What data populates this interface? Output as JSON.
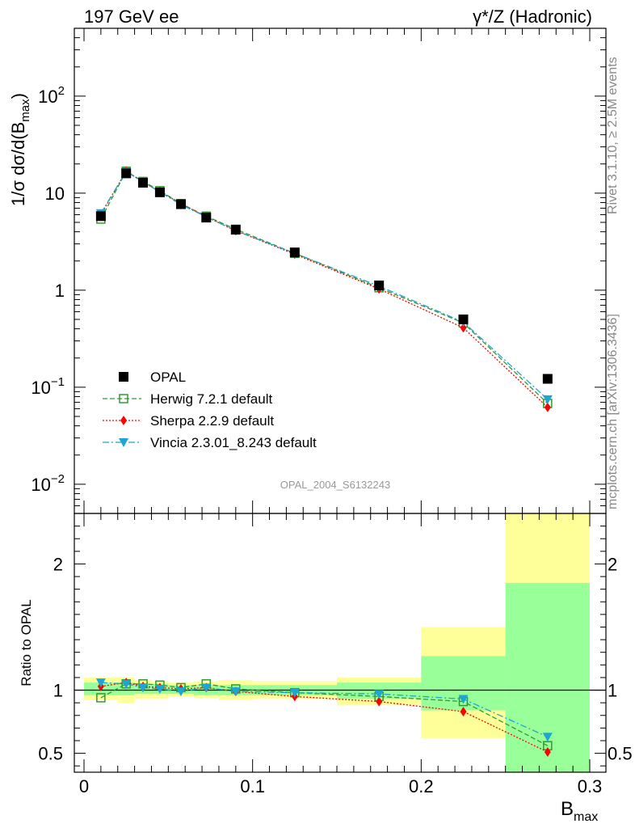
{
  "header": {
    "left": "197 GeV ee",
    "right": "γ*/Z (Hadronic)"
  },
  "side": {
    "rivet": "Rivet 3.1.10, ≥ 2.5M events",
    "mcplots": "mcplots.cern.ch [arXiv:1306.3436]"
  },
  "analysis_tag": "OPAL_2004_S6132243",
  "axes": {
    "main_ylabel": "1/σ dσ/d(B",
    "main_ylabel_sub": "max",
    "ratio_ylabel": "Ratio to OPAL",
    "xlabel": "B",
    "xlabel_sub": "max",
    "main_yticks": [
      {
        "v": 0.01,
        "base": "10",
        "exp": "−2"
      },
      {
        "v": 0.1,
        "base": "10",
        "exp": "−1"
      },
      {
        "v": 1,
        "base": "1",
        "exp": ""
      },
      {
        "v": 10,
        "base": "10",
        "exp": ""
      },
      {
        "v": 100,
        "base": "10",
        "exp": "2"
      }
    ],
    "ratio_yticks": [
      "0.5",
      "1",
      "2"
    ],
    "xticks": [
      "0",
      "0.1",
      "0.2",
      "0.3"
    ]
  },
  "colors": {
    "opal": "#000000",
    "herwig": "#339933",
    "sherpa": "#ff0000",
    "vincia": "#1ea5d2",
    "band_outer": "#ffff99",
    "band_inner": "#99ff99"
  },
  "chart_data": {
    "type": "scatter",
    "x_range": [
      0,
      0.3
    ],
    "main_ylim": [
      0.005,
      500
    ],
    "main_yscale": "log",
    "ratio_ylim": [
      0.35,
      2.4
    ],
    "bins": [
      {
        "lo": 0.0,
        "hi": 0.02,
        "x": 0.01,
        "inner": [
          0.96,
          1.06
        ],
        "outer": [
          0.92,
          1.1
        ]
      },
      {
        "lo": 0.02,
        "hi": 0.03,
        "x": 0.025,
        "inner": [
          0.96,
          1.06
        ],
        "outer": [
          0.9,
          1.1
        ]
      },
      {
        "lo": 0.03,
        "hi": 0.04,
        "x": 0.035,
        "inner": [
          0.97,
          1.05
        ],
        "outer": [
          0.93,
          1.08
        ]
      },
      {
        "lo": 0.04,
        "hi": 0.05,
        "x": 0.045,
        "inner": [
          0.97,
          1.05
        ],
        "outer": [
          0.93,
          1.07
        ]
      },
      {
        "lo": 0.05,
        "hi": 0.065,
        "x": 0.0575,
        "inner": [
          0.97,
          1.04
        ],
        "outer": [
          0.95,
          1.06
        ]
      },
      {
        "lo": 0.065,
        "hi": 0.08,
        "x": 0.0725,
        "inner": [
          0.96,
          1.04
        ],
        "outer": [
          0.94,
          1.07
        ]
      },
      {
        "lo": 0.08,
        "hi": 0.1,
        "x": 0.09,
        "inner": [
          0.96,
          1.04
        ],
        "outer": [
          0.92,
          1.08
        ]
      },
      {
        "lo": 0.1,
        "hi": 0.15,
        "x": 0.125,
        "inner": [
          0.96,
          1.04
        ],
        "outer": [
          0.93,
          1.07
        ]
      },
      {
        "lo": 0.15,
        "hi": 0.2,
        "x": 0.175,
        "inner": [
          0.93,
          1.06
        ],
        "outer": [
          0.88,
          1.1
        ]
      },
      {
        "lo": 0.2,
        "hi": 0.25,
        "x": 0.225,
        "inner": [
          0.84,
          1.27
        ],
        "outer": [
          0.62,
          1.5
        ]
      },
      {
        "lo": 0.25,
        "hi": 0.3,
        "x": 0.275,
        "inner": [
          0.35,
          1.85
        ],
        "outer": [
          0.35,
          2.4
        ]
      }
    ],
    "opal": [
      5.8,
      16.0,
      12.8,
      10.2,
      7.7,
      5.6,
      4.2,
      2.45,
      1.12,
      0.5,
      0.122
    ],
    "series": [
      {
        "name": "OPAL",
        "key": "opal",
        "marker": "square-filled",
        "line": "none"
      },
      {
        "name": "Herwig 7.2.1 default",
        "key": "herwig",
        "marker": "square-open",
        "line": "dashed",
        "values": [
          5.4,
          16.8,
          13.2,
          10.6,
          7.8,
          5.8,
          4.25,
          2.4,
          1.06,
          0.46,
          0.068
        ],
        "ratio": [
          0.94,
          1.05,
          1.05,
          1.04,
          1.02,
          1.05,
          1.01,
          0.98,
          0.95,
          0.91,
          0.56
        ]
      },
      {
        "name": "Sherpa 2.2.9 default",
        "key": "sherpa",
        "marker": "diamond-filled",
        "line": "dotted",
        "values": [
          6.0,
          16.9,
          13.0,
          10.4,
          7.8,
          5.7,
          4.1,
          2.35,
          1.03,
          0.41,
          0.062
        ],
        "ratio": [
          1.03,
          1.06,
          1.03,
          1.02,
          1.01,
          1.02,
          0.99,
          0.95,
          0.91,
          0.83,
          0.51
        ]
      },
      {
        "name": "Vincia 2.3.01_8.243 default",
        "key": "vincia",
        "marker": "triangle-down-filled",
        "line": "dashdot",
        "values": [
          6.2,
          16.7,
          13.0,
          10.3,
          7.6,
          5.7,
          4.1,
          2.4,
          1.1,
          0.47,
          0.075
        ],
        "ratio": [
          1.06,
          1.05,
          1.02,
          1.01,
          0.99,
          1.02,
          0.99,
          0.98,
          0.97,
          0.93,
          0.63
        ]
      }
    ]
  }
}
